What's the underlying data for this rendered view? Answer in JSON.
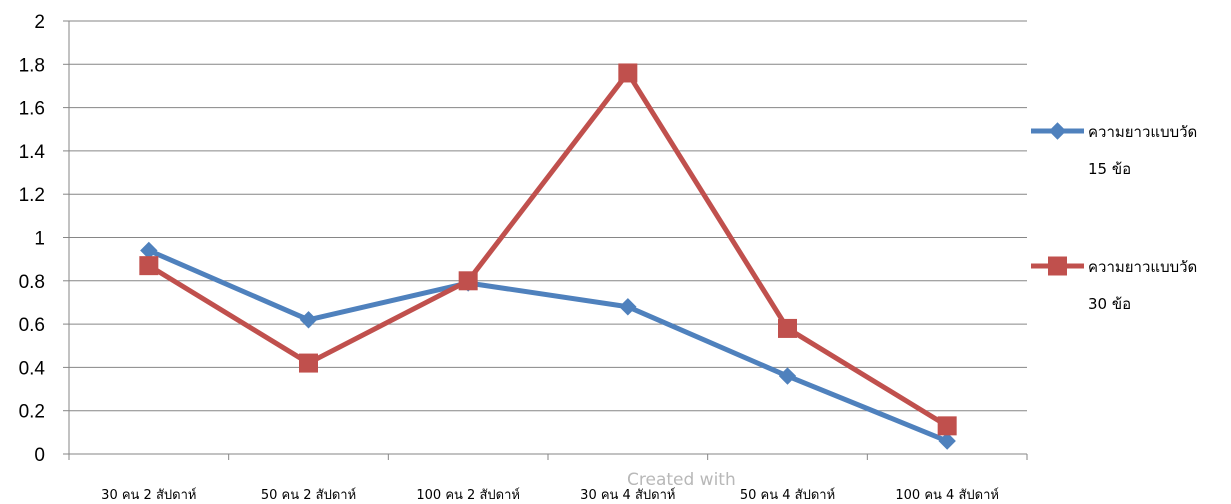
{
  "watermark": "Created with",
  "chart_data": {
    "type": "line",
    "categories": [
      "30 คน 2 สัปดาห์",
      "50 คน 2 สัปดาห์",
      "100 คน 2 สัปดาห์",
      "30 คน 4 สัปดาห์",
      "50 คน 4 สัปดาห์",
      "100 คน 4 สัปดาห์"
    ],
    "ylim": [
      0,
      2
    ],
    "ytick_labels": [
      "0",
      "0.2",
      "0.4",
      "0.6",
      "0.8",
      "1",
      "1.2",
      "1.4",
      "1.6",
      "1.8",
      "2"
    ],
    "grid": true,
    "legend_position": "right",
    "title": "",
    "xlabel": "",
    "ylabel": "",
    "series": [
      {
        "name_lines": [
          "ความยาวแบบวัด",
          "15 ข้อ"
        ],
        "color": "#4f81bd",
        "marker": "diamond",
        "values": [
          0.94,
          0.62,
          0.79,
          0.68,
          0.36,
          0.06
        ]
      },
      {
        "name_lines": [
          "ความยาวแบบวัด",
          "30 ข้อ"
        ],
        "color": "#c0504d",
        "marker": "square",
        "values": [
          0.87,
          0.42,
          0.8,
          1.76,
          0.58,
          0.13
        ]
      }
    ]
  }
}
